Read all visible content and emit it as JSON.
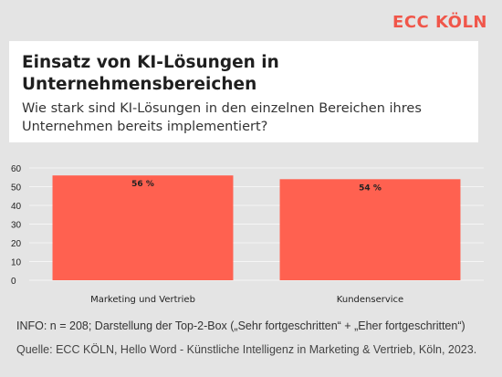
{
  "brand": {
    "logo_text": "ECC KÖLN",
    "accent_color": "#f0564a"
  },
  "header": {
    "title": "Einsatz von KI-Lösungen in Unternehmensbereichen",
    "subtitle": "Wie stark sind KI-Lösungen in den einzelnen Bereichen ihres Unternehmen bereits implementiert?"
  },
  "chart_data": {
    "type": "bar",
    "categories": [
      "Marketing und Vertrieb",
      "Kundenservice"
    ],
    "values": [
      56,
      54
    ],
    "data_labels": [
      "56 %",
      "54 %"
    ],
    "ylim": [
      0,
      60
    ],
    "yticks": [
      "0",
      "10",
      "20",
      "30",
      "40",
      "50",
      "60"
    ],
    "grid": true,
    "bar_color": "#ff6150"
  },
  "footer": {
    "info": "INFO: n = 208; Darstellung der Top-2-Box („Sehr fortgeschritten“ + „Eher fortgeschritten“)",
    "source": "Quelle: ECC KÖLN, Hello Word - Künstliche Intelligenz in Marketing & Vertrieb, Köln, 2023."
  }
}
